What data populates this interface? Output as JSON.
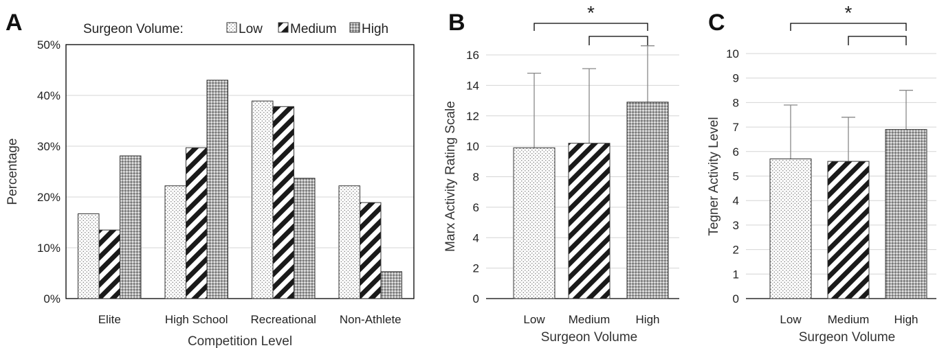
{
  "chart_data": [
    {
      "panel": "A",
      "type": "bar",
      "xlabel": "Competition Level",
      "ylabel": "Percentage",
      "legend_title": "Surgeon Volume:",
      "legend_placement": "top",
      "categories": [
        "Elite",
        "High School",
        "Recreational",
        "Non-Athlete"
      ],
      "series": [
        {
          "name": "Low",
          "values": [
            16.7,
            22.2,
            38.9,
            22.2
          ],
          "pattern": "dots"
        },
        {
          "name": "Medium",
          "values": [
            13.5,
            29.7,
            37.8,
            18.9
          ],
          "pattern": "stripes"
        },
        {
          "name": "High",
          "values": [
            28.1,
            43.0,
            23.7,
            5.3
          ],
          "pattern": "checker"
        }
      ],
      "ylim": [
        0,
        50
      ],
      "yticks": [
        "0%",
        "10%",
        "20%",
        "30%",
        "40%",
        "50%"
      ],
      "grid": true
    },
    {
      "panel": "B",
      "type": "bar",
      "xlabel": "Surgeon Volume",
      "ylabel": "Marx Activity Rating Scale",
      "categories": [
        "Low",
        "Medium",
        "High"
      ],
      "values": [
        9.9,
        10.2,
        12.9
      ],
      "errors": [
        4.9,
        4.9,
        3.7
      ],
      "patterns": [
        "dots",
        "stripes",
        "checker"
      ],
      "ylim": [
        0,
        16
      ],
      "yticks": [
        "0",
        "2",
        "4",
        "6",
        "8",
        "10",
        "12",
        "14",
        "16"
      ],
      "significance": {
        "marker": "*",
        "pairs": [
          [
            "Low",
            "High"
          ],
          [
            "Medium",
            "High"
          ]
        ]
      },
      "grid": true
    },
    {
      "panel": "C",
      "type": "bar",
      "xlabel": "Surgeon Volume",
      "ylabel": "Tegner Activity Level",
      "categories": [
        "Low",
        "Medium",
        "High"
      ],
      "values": [
        5.7,
        5.6,
        6.9
      ],
      "errors": [
        2.2,
        1.8,
        1.6
      ],
      "patterns": [
        "dots",
        "stripes",
        "checker"
      ],
      "ylim": [
        0,
        10
      ],
      "yticks": [
        "0",
        "1",
        "2",
        "3",
        "4",
        "5",
        "6",
        "7",
        "8",
        "9",
        "10"
      ],
      "significance": {
        "marker": "*",
        "pairs": [
          [
            "Low",
            "High"
          ],
          [
            "Medium",
            "High"
          ]
        ]
      },
      "grid": true
    }
  ]
}
